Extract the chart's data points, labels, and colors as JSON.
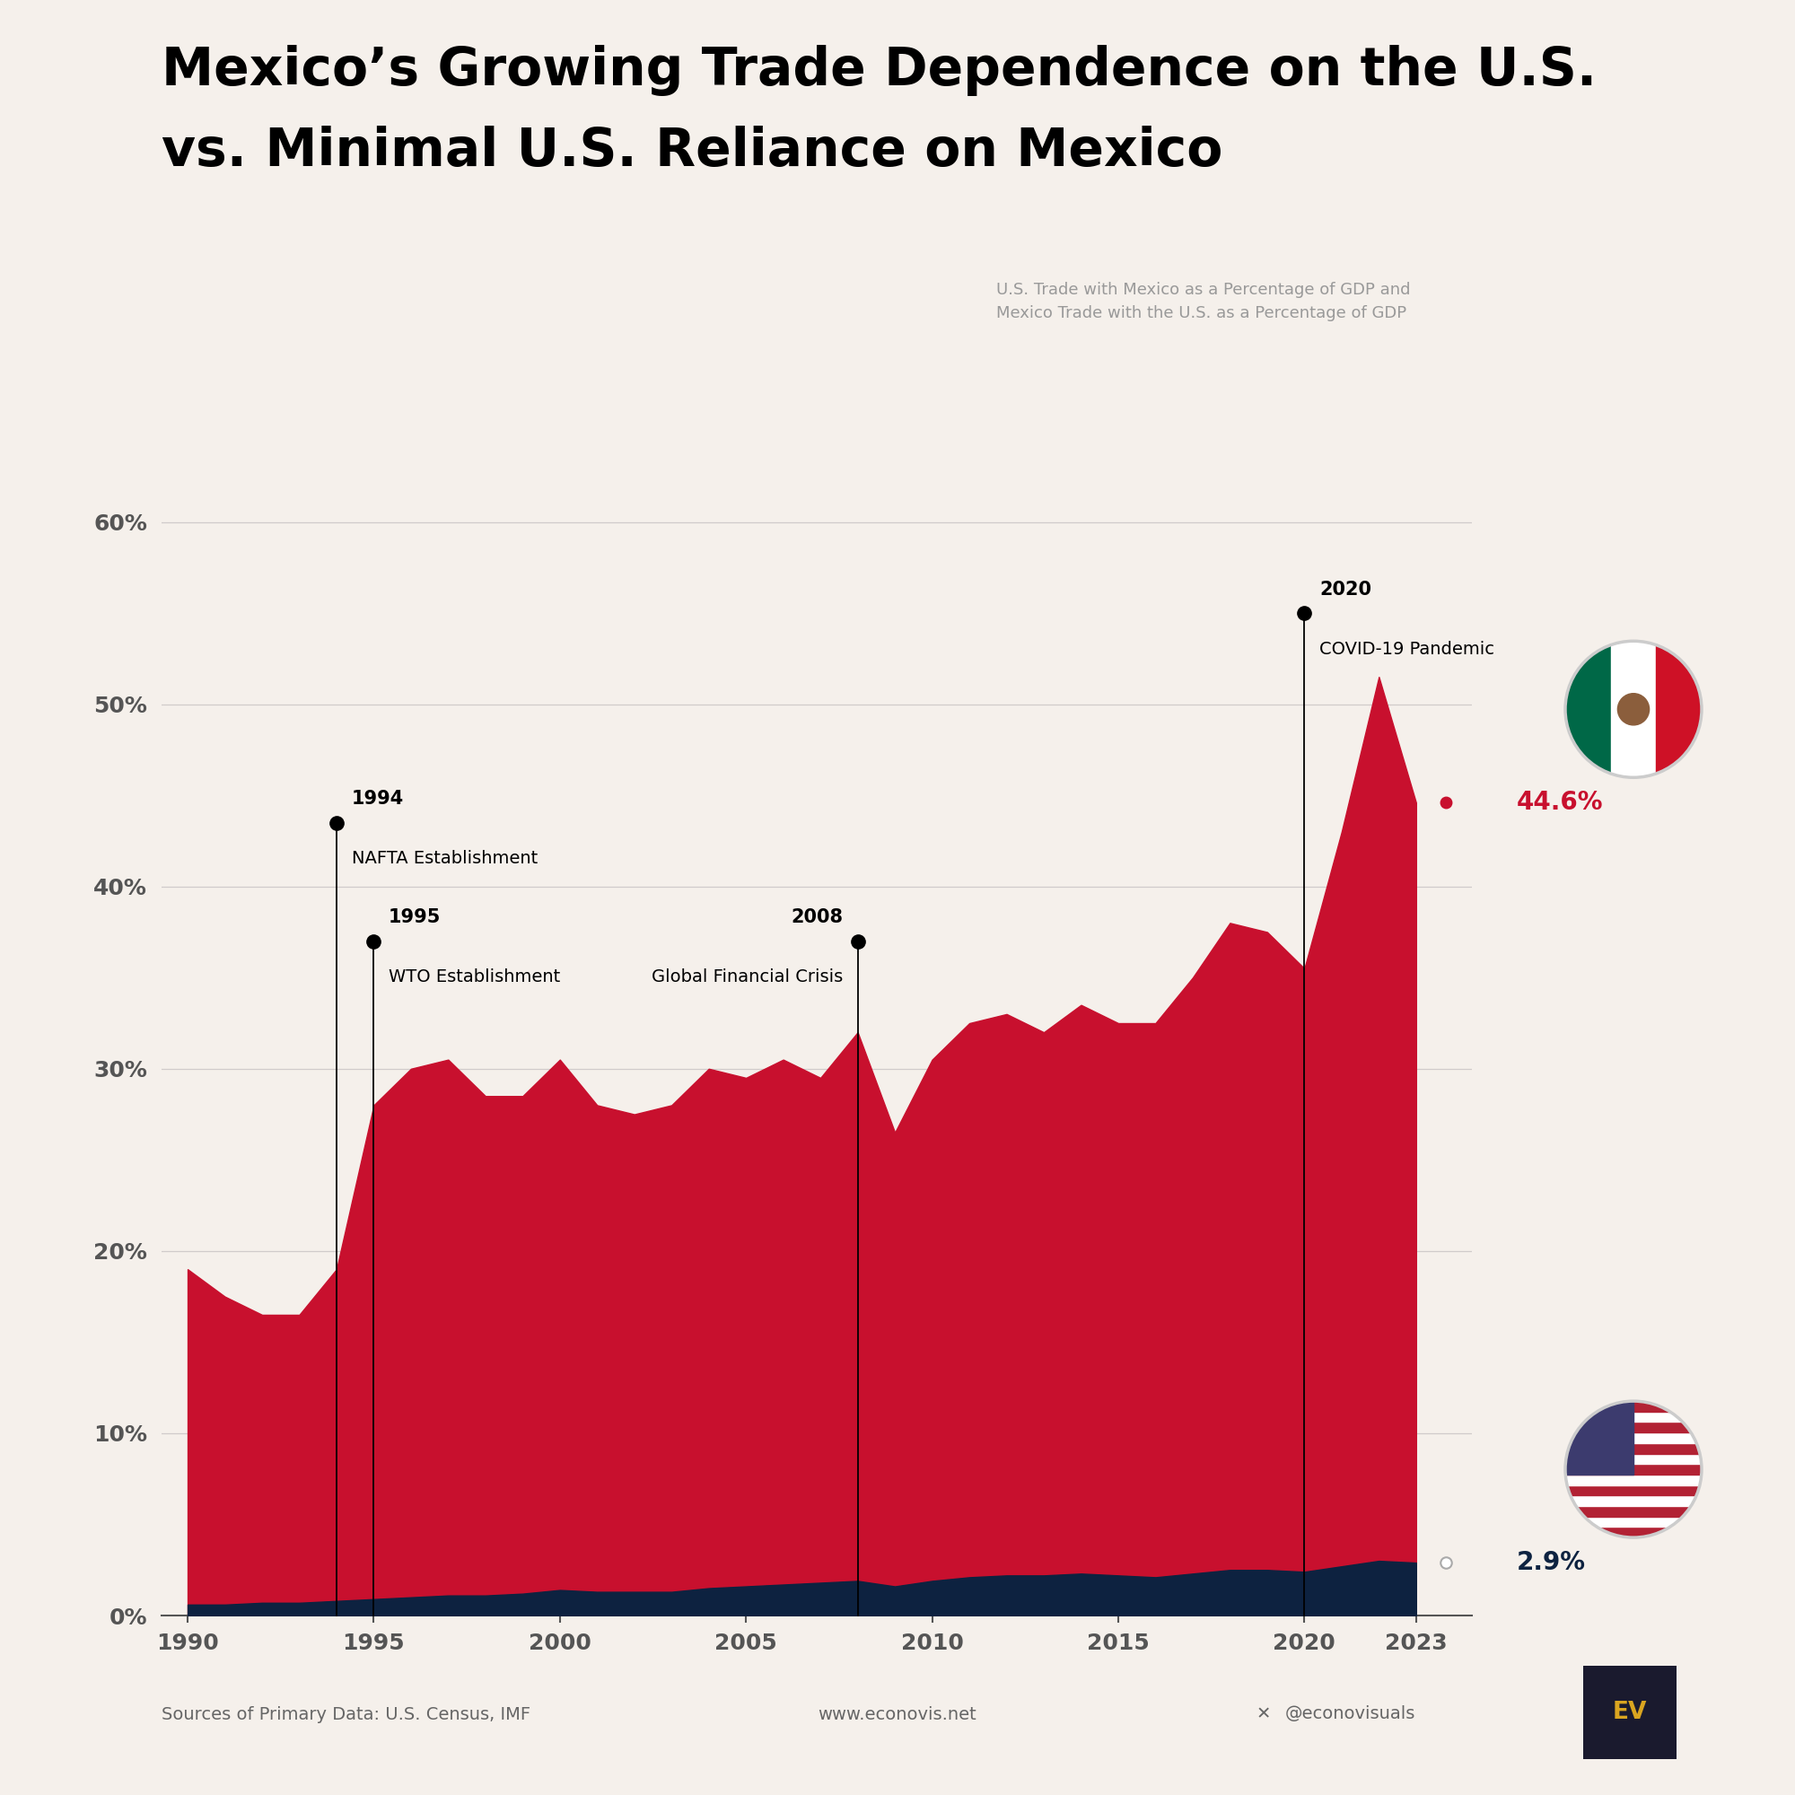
{
  "title_line1": "Mexico’s Growing Trade Dependence on the U.S.",
  "title_line2": "vs. Minimal U.S. Reliance on Mexico",
  "subtitle": "U.S. Trade with Mexico as a Percentage of GDP and\nMexico Trade with the U.S. as a Percentage of GDP",
  "background_color": "#F5F0EB",
  "years": [
    1990,
    1991,
    1992,
    1993,
    1994,
    1995,
    1996,
    1997,
    1998,
    1999,
    2000,
    2001,
    2002,
    2003,
    2004,
    2005,
    2006,
    2007,
    2008,
    2009,
    2010,
    2011,
    2012,
    2013,
    2014,
    2015,
    2016,
    2017,
    2018,
    2019,
    2020,
    2021,
    2022,
    2023
  ],
  "mexico_pct": [
    19.0,
    17.5,
    16.5,
    16.5,
    19.0,
    28.0,
    30.0,
    30.5,
    28.5,
    28.5,
    30.5,
    28.0,
    27.5,
    28.0,
    30.0,
    29.5,
    30.5,
    29.5,
    32.0,
    26.5,
    30.5,
    32.5,
    33.0,
    32.0,
    33.5,
    32.5,
    32.5,
    35.0,
    38.0,
    37.5,
    35.5,
    43.0,
    51.5,
    44.6
  ],
  "us_pct": [
    0.6,
    0.6,
    0.7,
    0.7,
    0.8,
    0.9,
    1.0,
    1.1,
    1.1,
    1.2,
    1.4,
    1.3,
    1.3,
    1.3,
    1.5,
    1.6,
    1.7,
    1.8,
    1.9,
    1.6,
    1.9,
    2.1,
    2.2,
    2.2,
    2.3,
    2.2,
    2.1,
    2.3,
    2.5,
    2.5,
    2.4,
    2.7,
    3.0,
    2.9
  ],
  "mexico_color": "#C8102E",
  "us_color": "#0D2240",
  "annotation_events": [
    {
      "year": 1994,
      "y_dot": 43.5,
      "year_label": "1994",
      "desc_label": "NAFTA Establishment",
      "label_side": "right"
    },
    {
      "year": 1995,
      "y_dot": 37.0,
      "year_label": "1995",
      "desc_label": "WTO Establishment",
      "label_side": "right"
    },
    {
      "year": 2008,
      "y_dot": 37.0,
      "year_label": "2008",
      "desc_label": "Global Financial Crisis",
      "label_side": "left"
    },
    {
      "year": 2020,
      "y_dot": 55.0,
      "year_label": "2020",
      "desc_label": "COVID-19 Pandemic",
      "label_side": "right"
    }
  ],
  "ylim_max": 65,
  "yticks": [
    0,
    10,
    20,
    30,
    40,
    50,
    60
  ],
  "ytick_labels": [
    "0%",
    "10%",
    "20%",
    "30%",
    "40%",
    "50%",
    "60%"
  ],
  "xticks": [
    1990,
    1995,
    2000,
    2005,
    2010,
    2015,
    2020,
    2023
  ],
  "source_text": "Sources of Primary Data: U.S. Census, IMF",
  "website_text": "www.econovis.net",
  "twitter_text": "@econovisuals",
  "mexico_end_label": "44.6%",
  "us_end_label": "2.9%",
  "title_fontsize": 42,
  "tick_fontsize": 18,
  "annot_year_fontsize": 15,
  "annot_desc_fontsize": 14,
  "subtitle_fontsize": 13,
  "label_fontsize": 20,
  "source_fontsize": 14
}
